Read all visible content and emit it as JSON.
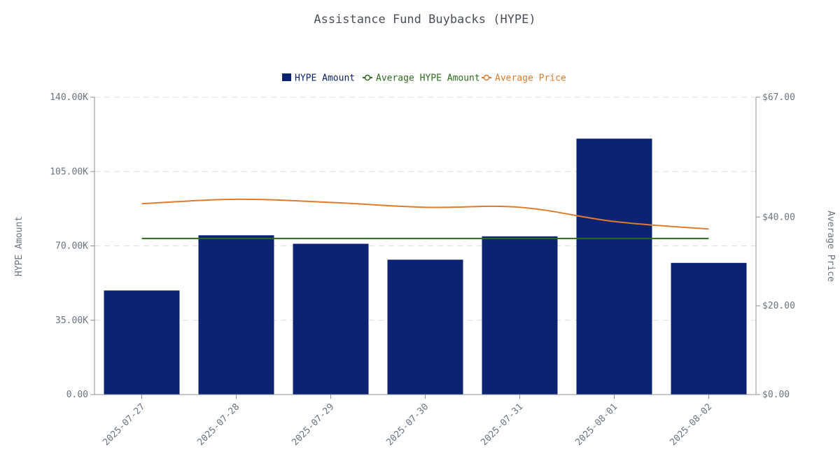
{
  "chart_data": {
    "type": "bar",
    "title": "Assistance Fund Buybacks (HYPE)",
    "categories": [
      "2025-07-27",
      "2025-07-28",
      "2025-07-29",
      "2025-07-30",
      "2025-07-31",
      "2025-08-01",
      "2025-08-02"
    ],
    "series": [
      {
        "name": "HYPE Amount",
        "type": "bar",
        "axis": "left",
        "color": "#0b2370",
        "values": [
          49000,
          75000,
          71000,
          63500,
          74500,
          120500,
          62000
        ]
      },
      {
        "name": "Average HYPE Amount",
        "type": "line",
        "axis": "left",
        "color": "#2e6b1d",
        "values": [
          73500,
          73500,
          73500,
          73500,
          73500,
          73500,
          73500
        ]
      },
      {
        "name": "Average Price",
        "type": "line",
        "axis": "right",
        "color": "#e07b2c",
        "values": [
          43.0,
          44.0,
          43.3,
          42.2,
          42.2,
          39.0,
          37.3
        ]
      }
    ],
    "y_left": {
      "label": "HYPE Amount",
      "ylim": [
        0,
        140000
      ],
      "ticks": [
        0,
        35000,
        70000,
        105000,
        140000
      ],
      "tick_labels": [
        "0.00",
        "35.00K",
        "70.00K",
        "105.00K",
        "140.00K"
      ]
    },
    "y_right": {
      "label": "Average Price",
      "ylim": [
        0,
        67
      ],
      "ticks": [
        0,
        20,
        40,
        67
      ],
      "tick_labels": [
        "$0.00",
        "$20.00",
        "$40.00",
        "$67.00"
      ]
    },
    "xlabel": "",
    "grid": "horizontal dashed",
    "legend_position": "top-center"
  }
}
